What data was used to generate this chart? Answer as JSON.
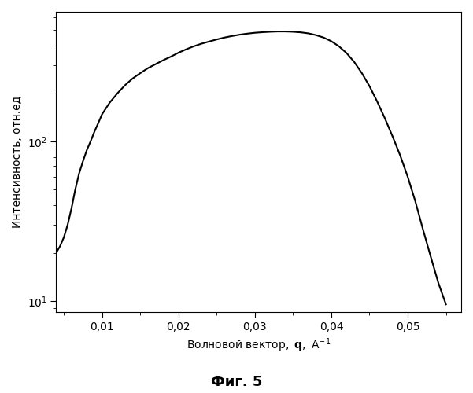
{
  "ylabel": "Интенсивность, отн.ед",
  "caption": "Фиг. 5",
  "xmin": 0.004,
  "xmax": 0.057,
  "ymin": 8.5,
  "ymax": 650,
  "line_color": "#000000",
  "background_color": "#ffffff",
  "xticks": [
    0.01,
    0.02,
    0.03,
    0.04,
    0.05
  ],
  "xtick_labels": [
    "0,01",
    "0,02",
    "0,03",
    "0,04",
    "0,05"
  ],
  "yticks": [
    10,
    100
  ],
  "ytick_labels": [
    "$10^1$",
    "$10^2$"
  ],
  "curve_points_x": [
    0.004,
    0.0045,
    0.005,
    0.0055,
    0.006,
    0.0065,
    0.007,
    0.0075,
    0.008,
    0.0085,
    0.009,
    0.0095,
    0.01,
    0.011,
    0.012,
    0.013,
    0.014,
    0.015,
    0.016,
    0.017,
    0.018,
    0.019,
    0.02,
    0.021,
    0.022,
    0.023,
    0.024,
    0.025,
    0.026,
    0.027,
    0.028,
    0.029,
    0.03,
    0.031,
    0.032,
    0.033,
    0.034,
    0.035,
    0.036,
    0.037,
    0.038,
    0.039,
    0.04,
    0.041,
    0.042,
    0.043,
    0.044,
    0.045,
    0.046,
    0.047,
    0.048,
    0.049,
    0.05,
    0.051,
    0.052,
    0.053,
    0.054,
    0.055
  ],
  "curve_points_y": [
    20,
    22,
    25,
    30,
    38,
    50,
    63,
    75,
    88,
    100,
    115,
    130,
    148,
    175,
    200,
    225,
    248,
    268,
    288,
    305,
    323,
    340,
    360,
    378,
    395,
    410,
    423,
    436,
    448,
    458,
    467,
    474,
    480,
    484,
    487,
    489,
    489,
    487,
    483,
    476,
    464,
    448,
    425,
    395,
    358,
    315,
    268,
    222,
    178,
    140,
    108,
    82,
    60,
    42,
    28,
    19,
    13,
    9.5
  ]
}
